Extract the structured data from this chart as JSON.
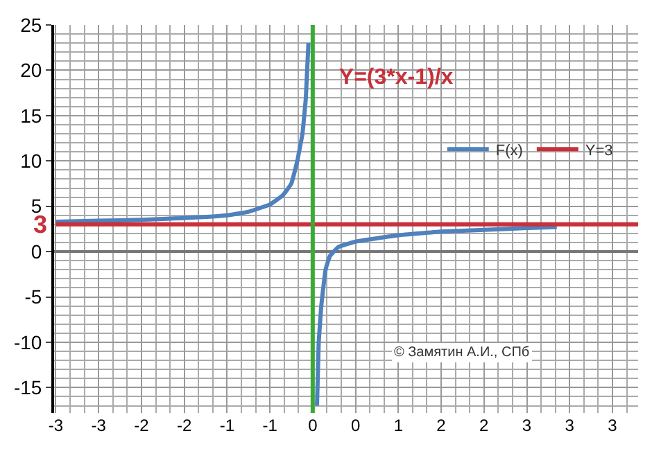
{
  "chart_data": {
    "type": "line",
    "title": "Y=(3*x-1)/x",
    "series": [
      {
        "name": "F(x)",
        "color": "#4f81bd",
        "x": [
          -3,
          -2.5,
          -2,
          -1.5,
          -1,
          -0.75,
          -0.5,
          -0.35,
          -0.25,
          -0.18,
          -0.12,
          -0.08,
          -0.05,
          0,
          0.05,
          0.07,
          0.1,
          0.15,
          0.2,
          0.3,
          0.5,
          1,
          1.5,
          2,
          2.5,
          2.85
        ],
        "values": [
          3.3,
          3.4,
          3.5,
          3.7,
          4.0,
          4.4,
          5.2,
          6.2,
          7.5,
          10,
          13,
          17,
          23,
          null,
          -17,
          -10,
          -6,
          -2,
          -0.5,
          0.5,
          1.1,
          1.8,
          2.2,
          2.4,
          2.6,
          2.7
        ]
      },
      {
        "name": "Y=3",
        "color": "#c8303a",
        "x": [
          -3,
          3.8
        ],
        "values": [
          3,
          3
        ]
      }
    ],
    "ref_lines": [
      {
        "axis": "x",
        "value": 0,
        "color": "#3aaa35"
      }
    ],
    "annotations": [
      {
        "text": "3",
        "x": -3,
        "y": 3
      },
      "© Замятин А.И., СПб"
    ],
    "xlim": [
      -3.02,
      3.8
    ],
    "xticks": [
      {
        "value": -3,
        "label": "-3"
      },
      {
        "value": -2.5,
        "label": "-3"
      },
      {
        "value": -2,
        "label": "-2"
      },
      {
        "value": -1.5,
        "label": "-2"
      },
      {
        "value": -1,
        "label": "-1"
      },
      {
        "value": -0.5,
        "label": "-1"
      },
      {
        "value": 0,
        "label": "0"
      },
      {
        "value": 0.5,
        "label": "0"
      },
      {
        "value": 1,
        "label": "1"
      },
      {
        "value": 1.5,
        "label": "2"
      },
      {
        "value": 2,
        "label": "2"
      },
      {
        "value": 2.5,
        "label": "3"
      },
      {
        "value": 3,
        "label": "3"
      },
      {
        "value": 3.5,
        "label": "3"
      }
    ],
    "ylim": [
      -17.8,
      25
    ],
    "yticks": [
      -15,
      -10,
      -5,
      0,
      5,
      10,
      15,
      20,
      25
    ],
    "grid": true,
    "legend": "top right",
    "marker": "none",
    "line_style": "solid"
  }
}
